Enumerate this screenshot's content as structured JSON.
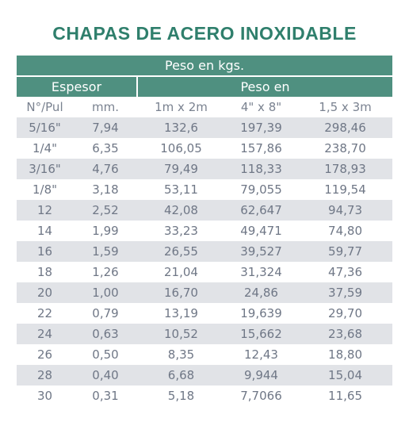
{
  "title": "CHAPAS DE ACERO INOXIDABLE",
  "header": {
    "weight_label": "Peso en kgs.",
    "thickness_label": "Espesor",
    "weight_in_label": "Peso en"
  },
  "columns": [
    "N°/Pul",
    "mm.",
    "1m x 2m",
    "4\" x 8\"",
    "1,5 x 3m"
  ],
  "rows": [
    [
      "5/16\"",
      "7,94",
      "132,6",
      "197,39",
      "298,46"
    ],
    [
      "1/4\"",
      "6,35",
      "106,05",
      "157,86",
      "238,70"
    ],
    [
      "3/16\"",
      "4,76",
      "79,49",
      "118,33",
      "178,93"
    ],
    [
      "1/8\"",
      "3,18",
      "53,11",
      "79,055",
      "119,54"
    ],
    [
      "12",
      "2,52",
      "42,08",
      "62,647",
      "94,73"
    ],
    [
      "14",
      "1,99",
      "33,23",
      "49,471",
      "74,80"
    ],
    [
      "16",
      "1,59",
      "26,55",
      "39,527",
      "59,77"
    ],
    [
      "18",
      "1,26",
      "21,04",
      "31,324",
      "47,36"
    ],
    [
      "20",
      "1,00",
      "16,70",
      "24,86",
      "37,59"
    ],
    [
      "22",
      "0,79",
      "13,19",
      "19,639",
      "29,70"
    ],
    [
      "24",
      "0,63",
      "10,52",
      "15,662",
      "23,68"
    ],
    [
      "26",
      "0,50",
      "8,35",
      "12,43",
      "18,80"
    ],
    [
      "28",
      "0,40",
      "6,68",
      "9,944",
      "15,04"
    ],
    [
      "30",
      "0,31",
      "5,18",
      "7,7066",
      "11,65"
    ]
  ],
  "colors": {
    "title": "#2f7f6c",
    "header_band": "#4f9080",
    "shaded_row": "#e1e3e7",
    "text": "#6f7786"
  }
}
